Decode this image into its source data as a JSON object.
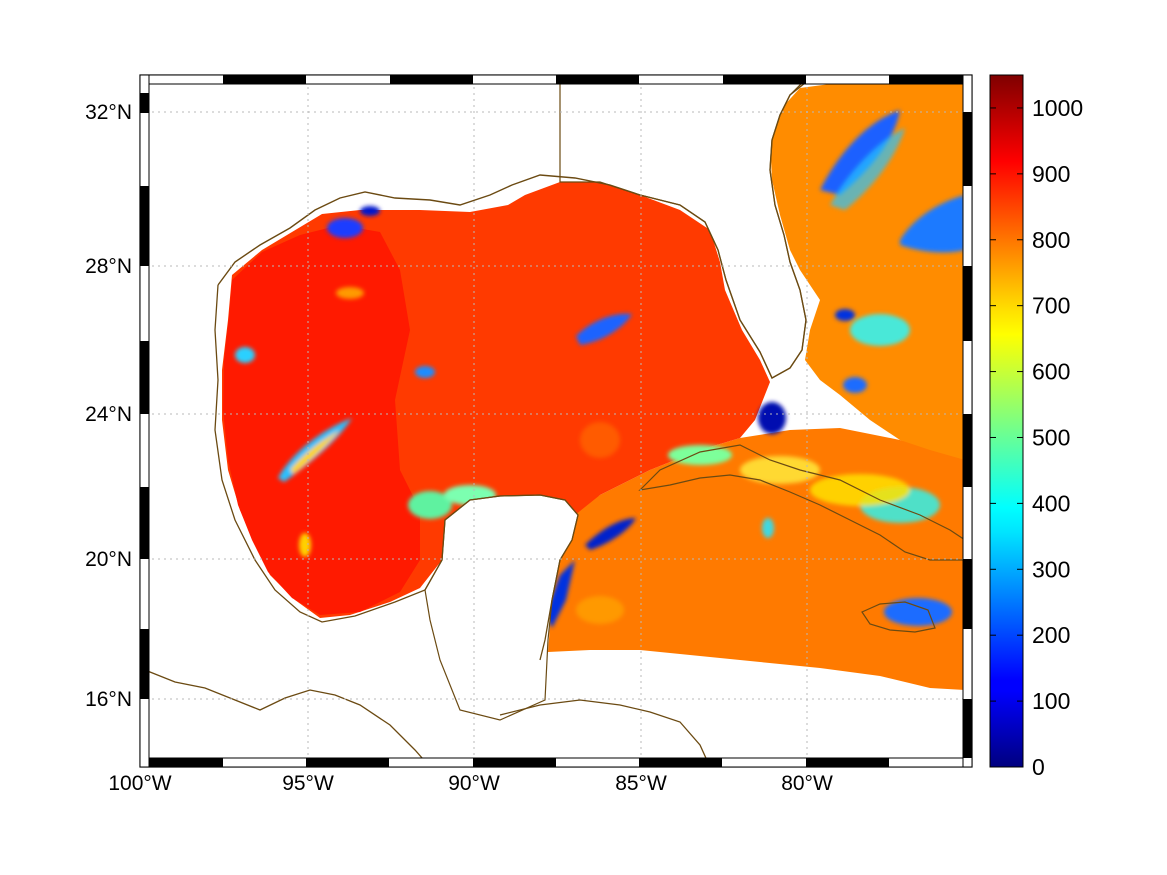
{
  "map": {
    "projection": "lat-lon",
    "lon_range": [
      -100,
      -75
    ],
    "lat_range": [
      14.2,
      33
    ],
    "grid": true,
    "grid_style": "dotted",
    "coastline_color": "#6b4a12",
    "land_color": "#ffffff",
    "frame_style": "alternating-black-white",
    "lon_ticks": [
      {
        "value": -100,
        "label": "100°W"
      },
      {
        "value": -95,
        "label": "95°W"
      },
      {
        "value": -90,
        "label": "90°W"
      },
      {
        "value": -85,
        "label": "85°W"
      },
      {
        "value": -80,
        "label": "80°W"
      }
    ],
    "lat_ticks": [
      {
        "value": 32,
        "label": "32°N"
      },
      {
        "value": 28,
        "label": "28°N"
      },
      {
        "value": 24,
        "label": "24°N"
      },
      {
        "value": 20,
        "label": "20°N"
      },
      {
        "value": 16,
        "label": "16°N"
      }
    ],
    "features": [
      {
        "name": "gulf-of-mexico-field",
        "level": 900
      },
      {
        "name": "caribbean-field",
        "level": 790
      },
      {
        "name": "atlantic-field",
        "level": 760
      }
    ]
  },
  "colorbar": {
    "colormap": "jet",
    "range": [
      0,
      1050
    ],
    "ticks": [
      {
        "value": 1000,
        "label": "1000"
      },
      {
        "value": 900,
        "label": "900"
      },
      {
        "value": 800,
        "label": "800"
      },
      {
        "value": 700,
        "label": "700"
      },
      {
        "value": 600,
        "label": "600"
      },
      {
        "value": 500,
        "label": "500"
      },
      {
        "value": 400,
        "label": "400"
      },
      {
        "value": 300,
        "label": "300"
      },
      {
        "value": 200,
        "label": "200"
      },
      {
        "value": 100,
        "label": "100"
      },
      {
        "value": 0,
        "label": "0"
      }
    ]
  }
}
